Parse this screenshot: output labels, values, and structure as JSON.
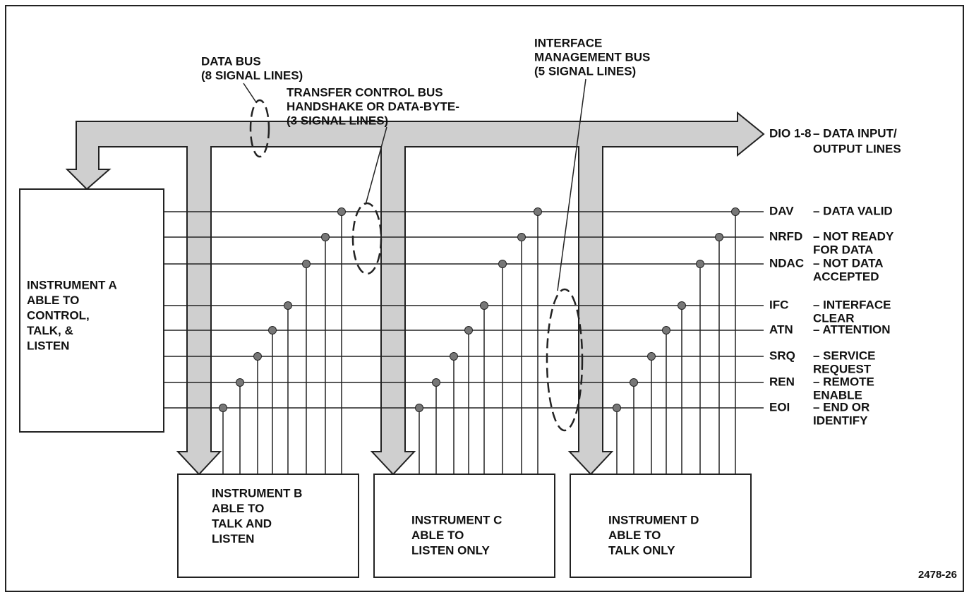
{
  "bus_labels": [
    {
      "lines": [
        "DATA BUS",
        "(8 SIGNAL LINES)"
      ]
    },
    {
      "lines": [
        "TRANSFER CONTROL BUS",
        "HANDSHAKE OR DATA-BYTE-",
        "(3 SIGNAL LINES)"
      ]
    },
    {
      "lines": [
        "INTERFACE",
        "MANAGEMENT BUS",
        "(5 SIGNAL LINES)"
      ]
    }
  ],
  "data_lines": {
    "code": "DIO 1-8",
    "description": [
      "– DATA INPUT/",
      "OUTPUT LINES"
    ]
  },
  "signals": [
    {
      "code": "DAV",
      "description": [
        "– DATA VALID"
      ]
    },
    {
      "code": "NRFD",
      "description": [
        "– NOT READY",
        "FOR DATA"
      ]
    },
    {
      "code": "NDAC",
      "description": [
        "– NOT DATA",
        "ACCEPTED"
      ]
    },
    {
      "code": "IFC",
      "description": [
        "– INTERFACE",
        "CLEAR"
      ]
    },
    {
      "code": "ATN",
      "description": [
        "– ATTENTION"
      ]
    },
    {
      "code": "SRQ",
      "description": [
        "– SERVICE",
        "REQUEST"
      ]
    },
    {
      "code": "REN",
      "description": [
        "– REMOTE",
        "ENABLE"
      ]
    },
    {
      "code": "EOI",
      "description": [
        "– END OR",
        "IDENTIFY"
      ]
    }
  ],
  "instruments": [
    {
      "lines": [
        "INSTRUMENT A",
        "ABLE TO",
        "CONTROL,",
        "TALK, &",
        "LISTEN"
      ]
    },
    {
      "lines": [
        "INSTRUMENT B",
        "ABLE TO",
        "TALK AND",
        "LISTEN"
      ]
    },
    {
      "lines": [
        "INSTRUMENT C",
        "ABLE TO",
        "LISTEN ONLY"
      ]
    },
    {
      "lines": [
        "INSTRUMENT D",
        "ABLE TO",
        "TALK ONLY"
      ]
    }
  ],
  "figure_number": "2478-26"
}
